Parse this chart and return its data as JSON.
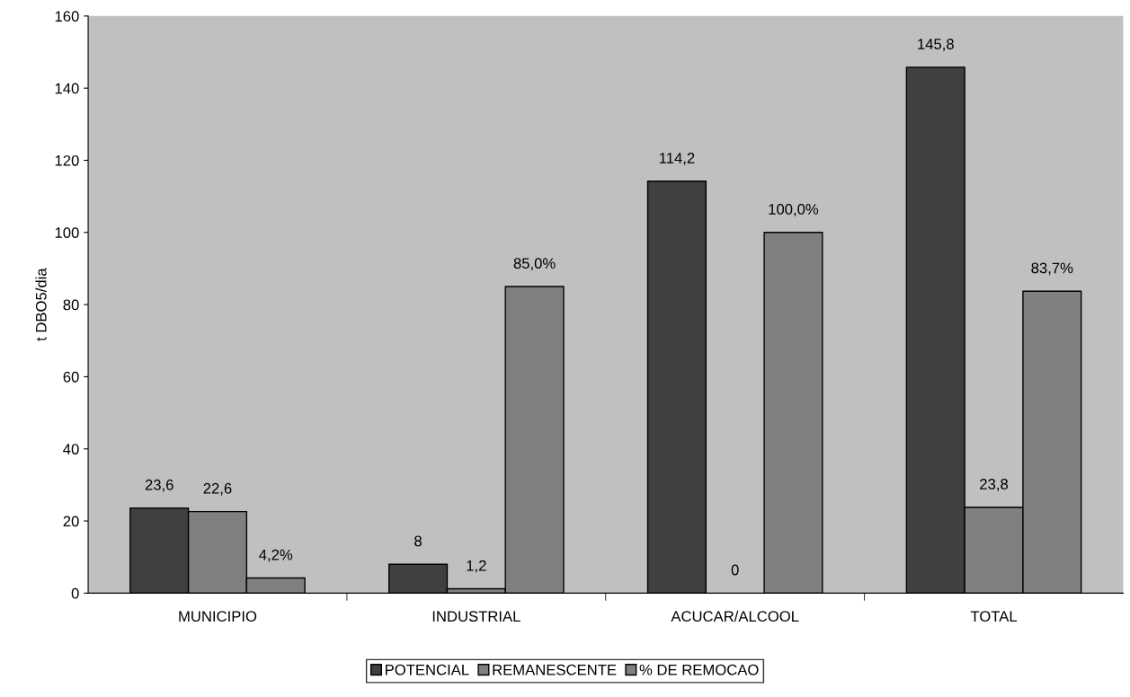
{
  "chart_data": {
    "type": "bar",
    "ylabel": "t DBO5/dia",
    "categories": [
      "MUNICIPIO",
      "INDUSTRIAL",
      "ACUCAR/ALCOOL",
      "TOTAL"
    ],
    "series": [
      {
        "name": "POTENCIAL",
        "color": "#404040",
        "values": [
          23.6,
          8,
          114.2,
          145.8
        ],
        "value_labels": [
          "23,6",
          "8",
          "114,2",
          "145,8"
        ]
      },
      {
        "name": "REMANESCENTE",
        "color": "#808080",
        "values": [
          22.6,
          1.2,
          0,
          23.8
        ],
        "value_labels": [
          "22,6",
          "1,2",
          "0",
          "23,8"
        ]
      },
      {
        "name": "% DE REMOCAO",
        "color": "#808080",
        "values": [
          4.2,
          85.0,
          100.0,
          83.7
        ],
        "value_labels": [
          "4,2%",
          "85,0%",
          "100,0%",
          "83,7%"
        ]
      }
    ],
    "ylim": [
      0,
      160
    ],
    "yticks": [
      0,
      20,
      40,
      60,
      80,
      100,
      120,
      140,
      160
    ],
    "grid": false,
    "legend": "bottom"
  }
}
